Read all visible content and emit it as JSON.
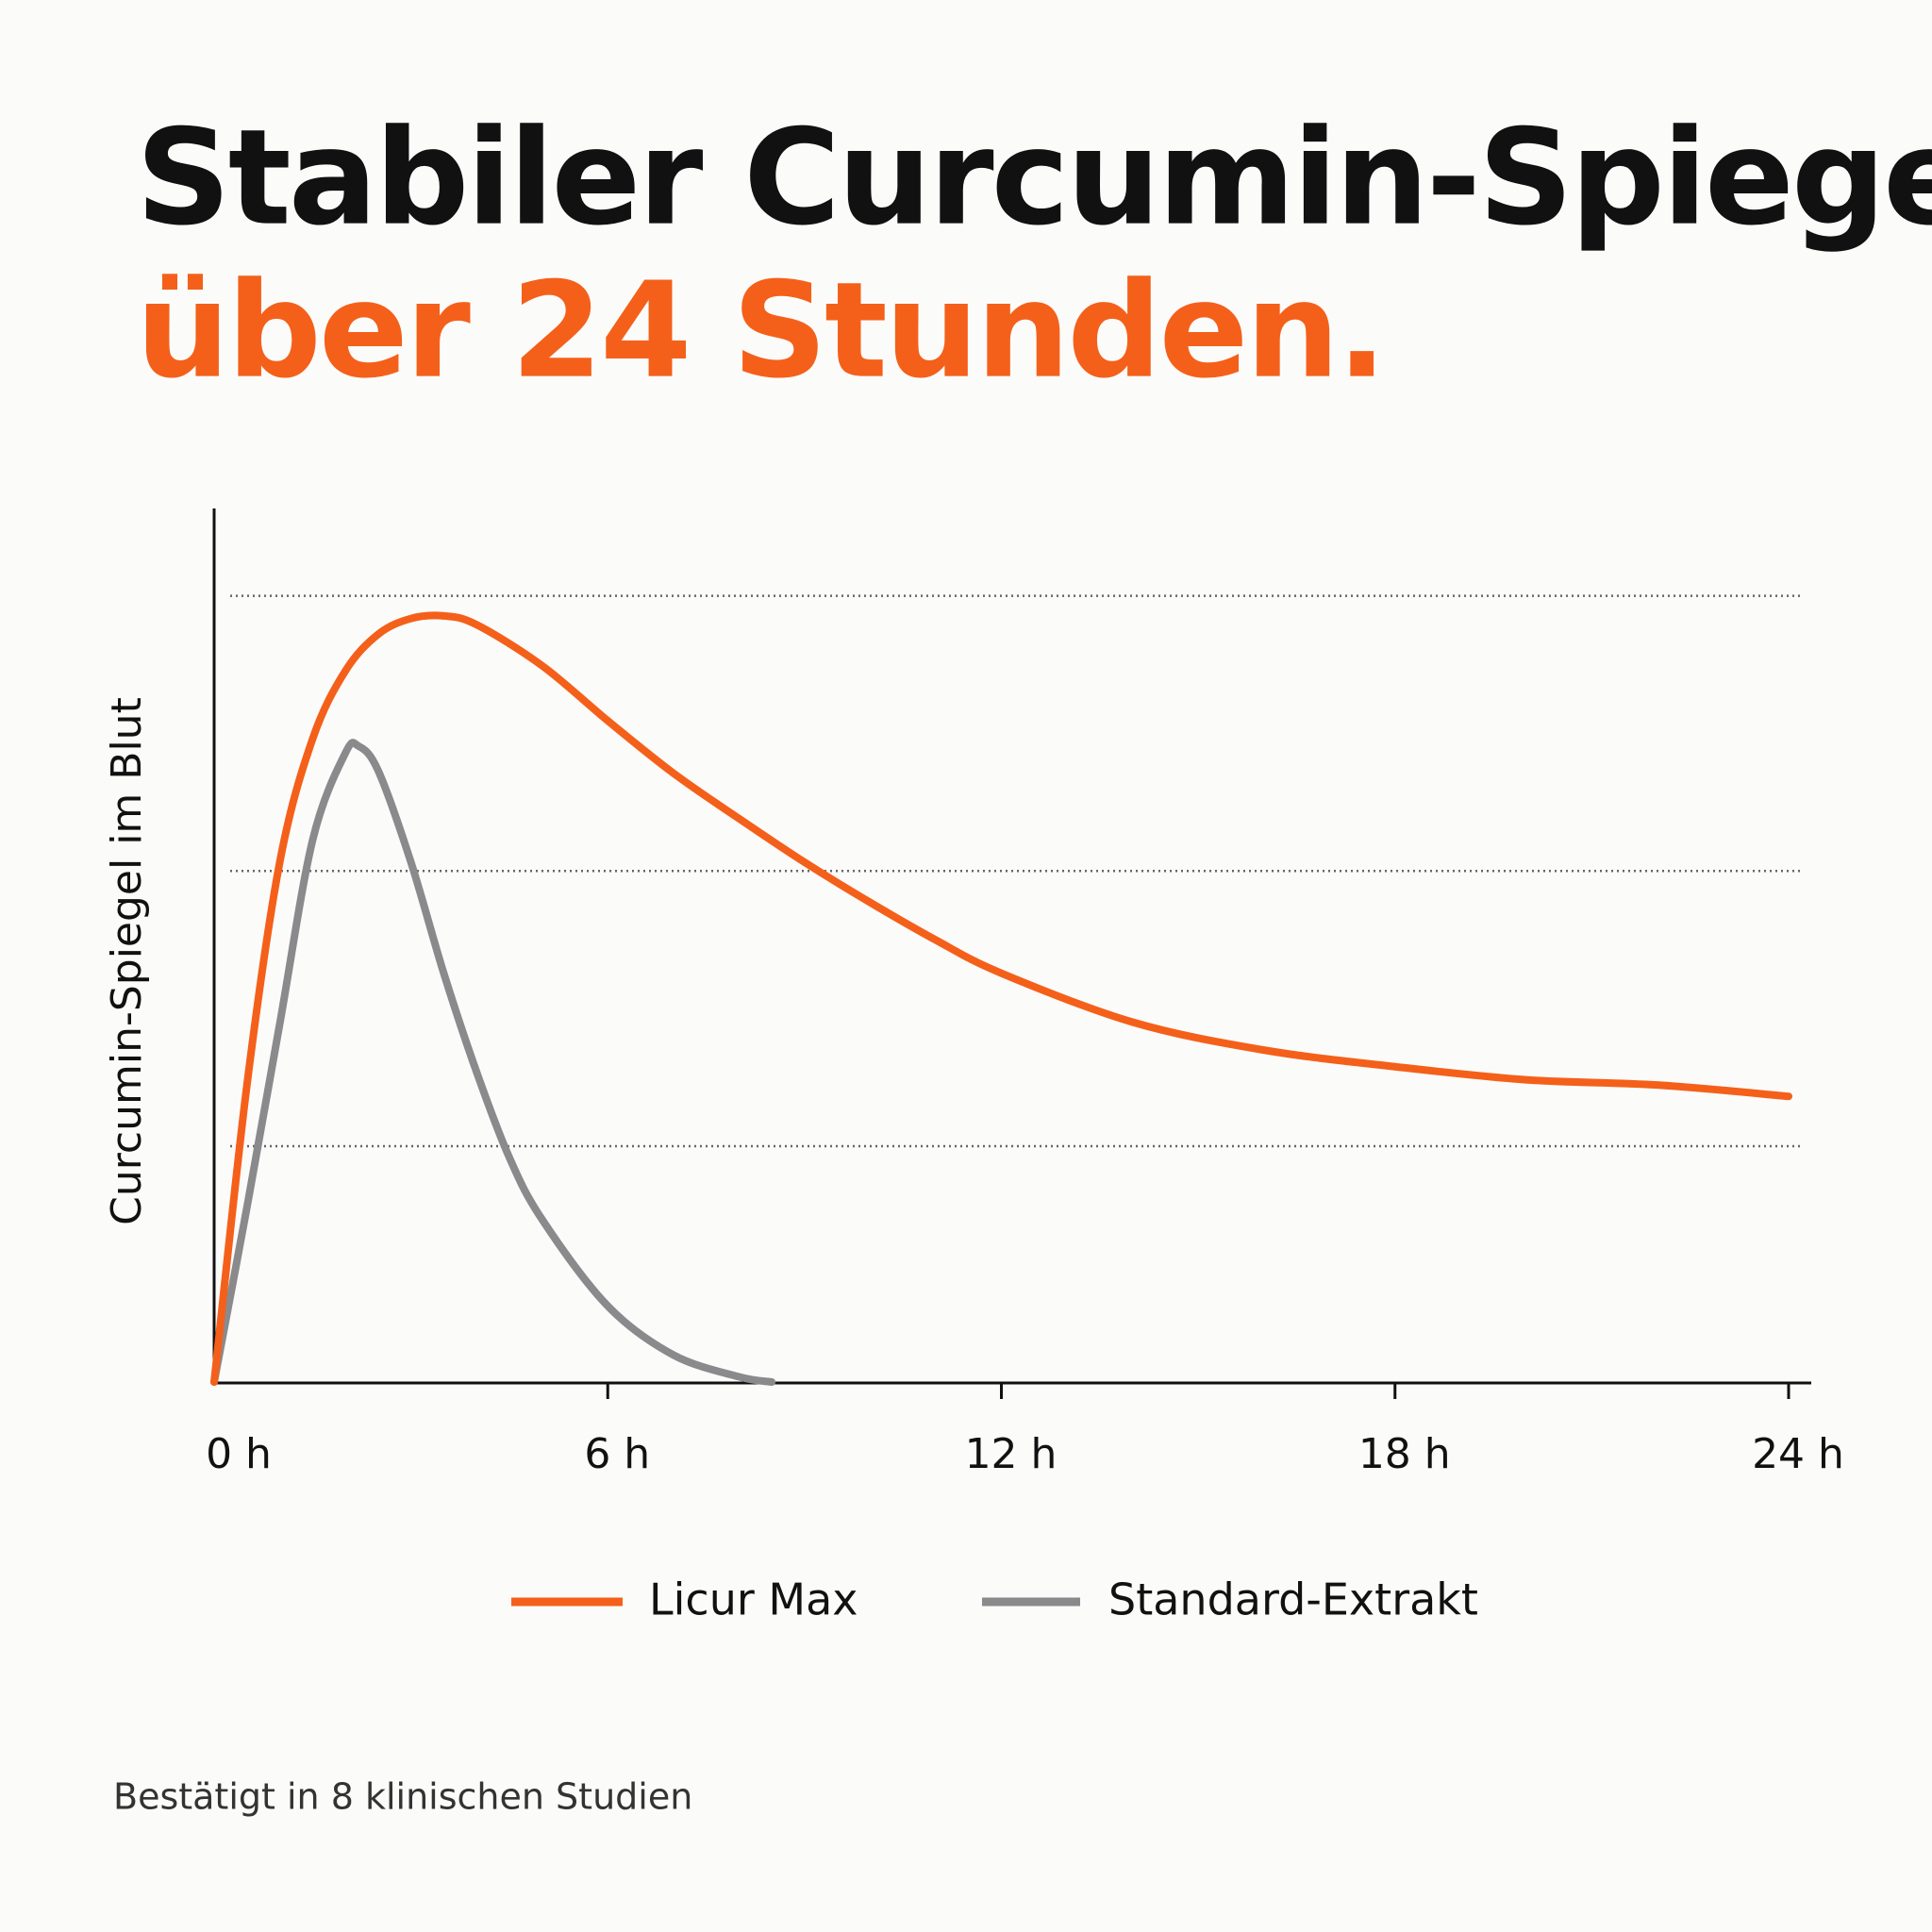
{
  "chart_data": {
    "type": "line",
    "title": "Stabiler Curcumin-Spiegel",
    "subtitle": "über 24 Stunden.",
    "y_label": "Curcumin-Spiegel im Blut",
    "note": "Bestätigt in 8 klinischen Studien",
    "xlim": [
      0,
      24
    ],
    "xticks": [
      {
        "value": 0,
        "label": "0 h"
      },
      {
        "value": 6,
        "label": "6 h"
      },
      {
        "value": 12,
        "label": "12 h"
      },
      {
        "value": 18,
        "label": "18 h"
      },
      {
        "value": 24,
        "label": "24 h"
      }
    ],
    "ylim": [
      0,
      100
    ],
    "grid_y": [
      27,
      58.5,
      90
    ],
    "series": [
      {
        "name": "Licur Max",
        "color": "#f4601a",
        "x": [
          0,
          0.5,
          1,
          1.5,
          2,
          2.5,
          3,
          3.5,
          4,
          5,
          6,
          7,
          8,
          9,
          10,
          11,
          12,
          14,
          16,
          18,
          20,
          22,
          24
        ],
        "values": [
          0,
          34,
          59.5,
          73.6,
          81.4,
          85.6,
          87.4,
          87.7,
          86.7,
          82,
          75.7,
          69.7,
          64.5,
          59.5,
          54.9,
          50.6,
          46.8,
          41.2,
          38,
          36.1,
          34.6,
          34,
          32.7
        ]
      },
      {
        "name": "Standard-Extrakt",
        "color": "#8a8a8c",
        "x": [
          0,
          0.5,
          1,
          1.5,
          2,
          2.2,
          2.5,
          3,
          3.5,
          4,
          4.5,
          5,
          6,
          7,
          8,
          8.5
        ],
        "values": [
          0,
          20,
          41,
          62,
          72,
          72.8,
          70,
          59.5,
          46.8,
          35.5,
          25.7,
          18.6,
          8.7,
          3.1,
          0.6,
          0
        ]
      }
    ]
  }
}
